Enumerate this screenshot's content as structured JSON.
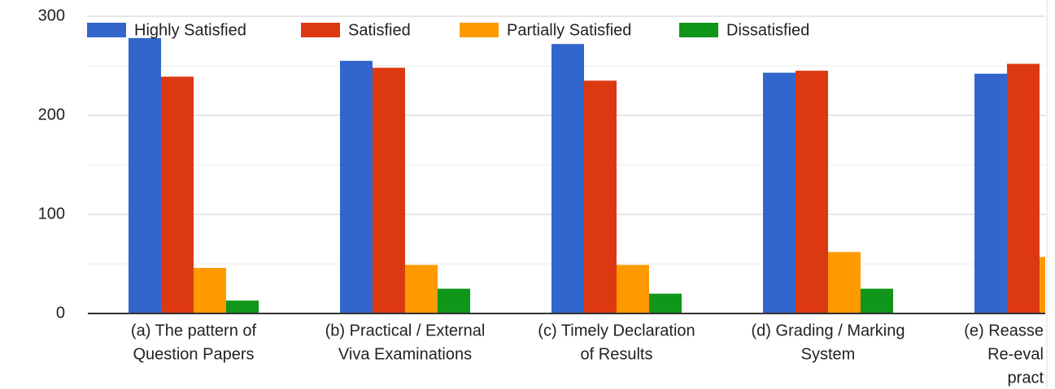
{
  "chart_data": {
    "type": "bar",
    "categories": [
      [
        "(a) The pattern of",
        "Question Papers"
      ],
      [
        "(b) Practical / External",
        "Viva Examinations"
      ],
      [
        "(c) Timely Declaration",
        "of Results"
      ],
      [
        "(d) Grading / Marking",
        "System"
      ],
      [
        "(e) Reasse",
        "Re-eval",
        "pract"
      ]
    ],
    "series": [
      {
        "name": "Highly Satisfied",
        "color": "#3366cc",
        "values": [
          278,
          255,
          272,
          243,
          242
        ]
      },
      {
        "name": "Satisfied",
        "color": "#dc3912",
        "values": [
          239,
          248,
          235,
          245,
          252
        ]
      },
      {
        "name": "Partially Satisfied",
        "color": "#ff9900",
        "values": [
          46,
          49,
          49,
          62,
          57
        ]
      },
      {
        "name": "Dissatisfied",
        "color": "#109618",
        "values": [
          13,
          25,
          20,
          25,
          null
        ]
      }
    ],
    "ylim": [
      0,
      300
    ],
    "yticks": [
      0,
      100,
      200,
      300
    ],
    "grid": true,
    "legend": "top"
  }
}
